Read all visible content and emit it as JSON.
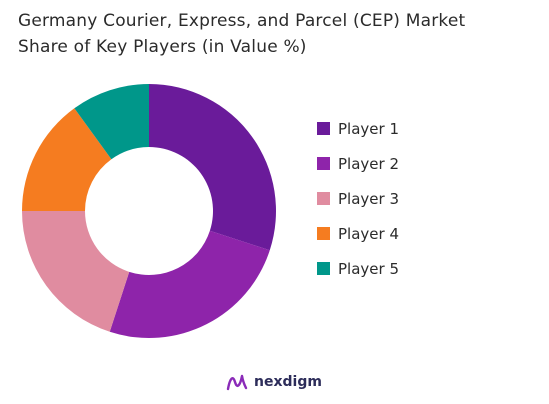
{
  "title_line1": "Germany Courier, Express, and Parcel (CEP) Market",
  "title_line2": "Share of Key Players (in Value %)",
  "brand": {
    "name": "nexdigm",
    "color": "#2d2d5a",
    "accent": "#8a2bb8"
  },
  "chart_data": {
    "type": "pie",
    "variant": "donut",
    "title": "Germany Courier, Express, and Parcel (CEP) Market Share of Key Players (in Value %)",
    "legend_position": "right",
    "slices": [
      {
        "label": "Player 1",
        "value": 30,
        "color": "#6a1b9a"
      },
      {
        "label": "Player 2",
        "value": 25,
        "color": "#8e24aa"
      },
      {
        "label": "Player 3",
        "value": 20,
        "color": "#e08ca0"
      },
      {
        "label": "Player 4",
        "value": 15,
        "color": "#f57c20"
      },
      {
        "label": "Player 5",
        "value": 10,
        "color": "#00978a"
      }
    ]
  }
}
